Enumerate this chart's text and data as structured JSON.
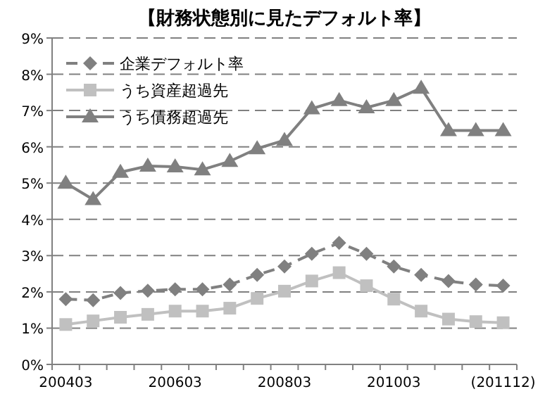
{
  "chart_data": {
    "type": "line",
    "title": "【財務状態別に見たデフォルト率】",
    "categories": [
      "200403",
      null,
      null,
      null,
      "200603",
      null,
      null,
      null,
      "200803",
      null,
      null,
      null,
      "201003",
      null,
      null,
      null,
      "(201112)"
    ],
    "series": [
      {
        "name": "企業デフォルト率",
        "color": "#808080",
        "marker": "diamond",
        "line_style": "dashed",
        "values": [
          1.8,
          1.77,
          1.97,
          2.03,
          2.07,
          2.07,
          2.2,
          2.47,
          2.7,
          3.05,
          3.35,
          3.05,
          2.7,
          2.47,
          2.3,
          2.2,
          2.17
        ]
      },
      {
        "name": "うち資産超過先",
        "color": "#c0c0c0",
        "marker": "square",
        "line_style": "solid",
        "values": [
          1.1,
          1.2,
          1.3,
          1.38,
          1.47,
          1.47,
          1.55,
          1.82,
          2.02,
          2.3,
          2.53,
          2.17,
          1.8,
          1.47,
          1.25,
          1.18,
          1.15
        ]
      },
      {
        "name": "うち債務超過先",
        "color": "#808080",
        "marker": "triangle",
        "line_style": "solid",
        "values": [
          5.0,
          4.55,
          5.3,
          5.47,
          5.45,
          5.37,
          5.6,
          5.95,
          6.18,
          7.05,
          7.28,
          7.08,
          7.28,
          7.62,
          6.45,
          6.45,
          6.45
        ]
      }
    ],
    "ylim": [
      0,
      9
    ],
    "yticks": [
      {
        "value": 0,
        "label": "0%"
      },
      {
        "value": 1,
        "label": "1%"
      },
      {
        "value": 2,
        "label": "2%"
      },
      {
        "value": 3,
        "label": "3%"
      },
      {
        "value": 4,
        "label": "4%"
      },
      {
        "value": 5,
        "label": "5%"
      },
      {
        "value": 6,
        "label": "6%"
      },
      {
        "value": 7,
        "label": "7%"
      },
      {
        "value": 8,
        "label": "8%"
      },
      {
        "value": 9,
        "label": "9%"
      }
    ],
    "grid": "y",
    "legend": "top left"
  }
}
